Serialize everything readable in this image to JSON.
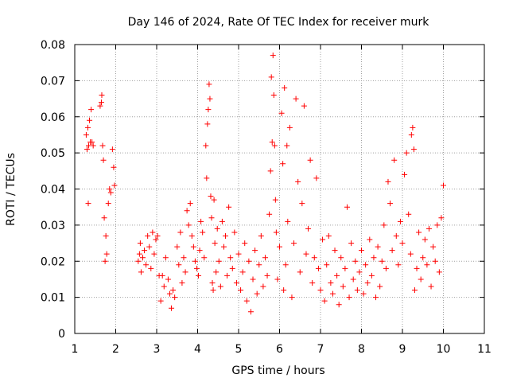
{
  "chart_data": {
    "type": "scatter",
    "title": "Day 146 of 2024, Rate Of TEC Index for receiver murk",
    "xlabel": "GPS time / hours",
    "ylabel": "ROTI / TECUs",
    "xlim": [
      1,
      11
    ],
    "ylim": [
      0,
      0.08
    ],
    "xticks": [
      "1",
      "2",
      "3",
      "4",
      "5",
      "6",
      "7",
      "8",
      "9",
      "10",
      "11"
    ],
    "yticks": [
      "0",
      "0.01",
      "0.02",
      "0.03",
      "0.04",
      "0.05",
      "0.06",
      "0.07",
      "0.08"
    ],
    "grid": true,
    "marker": "+",
    "series_color": "#ff0000",
    "series": [
      {
        "name": "ROTI",
        "points": [
          [
            1.28,
            0.055
          ],
          [
            1.3,
            0.051
          ],
          [
            1.32,
            0.057
          ],
          [
            1.33,
            0.036
          ],
          [
            1.34,
            0.052
          ],
          [
            1.36,
            0.059
          ],
          [
            1.38,
            0.053
          ],
          [
            1.4,
            0.062
          ],
          [
            1.42,
            0.053
          ],
          [
            1.45,
            0.052
          ],
          [
            1.62,
            0.063
          ],
          [
            1.65,
            0.064
          ],
          [
            1.66,
            0.066
          ],
          [
            1.68,
            0.052
          ],
          [
            1.7,
            0.048
          ],
          [
            1.72,
            0.032
          ],
          [
            1.74,
            0.02
          ],
          [
            1.76,
            0.027
          ],
          [
            1.78,
            0.022
          ],
          [
            1.82,
            0.036
          ],
          [
            1.85,
            0.04
          ],
          [
            1.88,
            0.039
          ],
          [
            1.92,
            0.051
          ],
          [
            1.95,
            0.046
          ],
          [
            1.97,
            0.041
          ],
          [
            2.55,
            0.02
          ],
          [
            2.58,
            0.022
          ],
          [
            2.6,
            0.025
          ],
          [
            2.62,
            0.017
          ],
          [
            2.66,
            0.021
          ],
          [
            2.7,
            0.023
          ],
          [
            2.74,
            0.019
          ],
          [
            2.78,
            0.027
          ],
          [
            2.82,
            0.024
          ],
          [
            2.86,
            0.018
          ],
          [
            2.9,
            0.028
          ],
          [
            2.94,
            0.022
          ],
          [
            2.98,
            0.026
          ],
          [
            3.02,
            0.027
          ],
          [
            3.06,
            0.016
          ],
          [
            3.1,
            0.009
          ],
          [
            3.14,
            0.016
          ],
          [
            3.18,
            0.013
          ],
          [
            3.22,
            0.021
          ],
          [
            3.28,
            0.015
          ],
          [
            3.32,
            0.011
          ],
          [
            3.36,
            0.007
          ],
          [
            3.4,
            0.012
          ],
          [
            3.44,
            0.01
          ],
          [
            3.5,
            0.024
          ],
          [
            3.54,
            0.019
          ],
          [
            3.58,
            0.028
          ],
          [
            3.62,
            0.014
          ],
          [
            3.66,
            0.021
          ],
          [
            3.7,
            0.017
          ],
          [
            3.74,
            0.034
          ],
          [
            3.78,
            0.03
          ],
          [
            3.82,
            0.036
          ],
          [
            3.86,
            0.027
          ],
          [
            3.9,
            0.024
          ],
          [
            3.94,
            0.02
          ],
          [
            3.98,
            0.018
          ],
          [
            4.02,
            0.016
          ],
          [
            4.05,
            0.023
          ],
          [
            4.08,
            0.031
          ],
          [
            4.12,
            0.028
          ],
          [
            4.16,
            0.021
          ],
          [
            4.2,
            0.052
          ],
          [
            4.22,
            0.043
          ],
          [
            4.24,
            0.058
          ],
          [
            4.26,
            0.062
          ],
          [
            4.28,
            0.069
          ],
          [
            4.3,
            0.065
          ],
          [
            4.32,
            0.038
          ],
          [
            4.34,
            0.032
          ],
          [
            4.36,
            0.014
          ],
          [
            4.38,
            0.012
          ],
          [
            4.4,
            0.037
          ],
          [
            4.42,
            0.025
          ],
          [
            4.45,
            0.017
          ],
          [
            4.48,
            0.029
          ],
          [
            4.52,
            0.02
          ],
          [
            4.56,
            0.013
          ],
          [
            4.6,
            0.031
          ],
          [
            4.64,
            0.024
          ],
          [
            4.68,
            0.027
          ],
          [
            4.72,
            0.016
          ],
          [
            4.76,
            0.035
          ],
          [
            4.8,
            0.021
          ],
          [
            4.85,
            0.018
          ],
          [
            4.9,
            0.028
          ],
          [
            4.95,
            0.014
          ],
          [
            5.0,
            0.022
          ],
          [
            5.05,
            0.012
          ],
          [
            5.1,
            0.017
          ],
          [
            5.15,
            0.025
          ],
          [
            5.2,
            0.009
          ],
          [
            5.25,
            0.02
          ],
          [
            5.3,
            0.006
          ],
          [
            5.35,
            0.015
          ],
          [
            5.4,
            0.023
          ],
          [
            5.45,
            0.011
          ],
          [
            5.5,
            0.019
          ],
          [
            5.55,
            0.027
          ],
          [
            5.6,
            0.013
          ],
          [
            5.65,
            0.021
          ],
          [
            5.7,
            0.016
          ],
          [
            5.75,
            0.033
          ],
          [
            5.78,
            0.045
          ],
          [
            5.8,
            0.071
          ],
          [
            5.82,
            0.053
          ],
          [
            5.84,
            0.077
          ],
          [
            5.86,
            0.066
          ],
          [
            5.88,
            0.052
          ],
          [
            5.9,
            0.037
          ],
          [
            5.92,
            0.028
          ],
          [
            5.95,
            0.015
          ],
          [
            6.0,
            0.024
          ],
          [
            6.05,
            0.061
          ],
          [
            6.08,
            0.047
          ],
          [
            6.1,
            0.012
          ],
          [
            6.12,
            0.068
          ],
          [
            6.15,
            0.019
          ],
          [
            6.18,
            0.052
          ],
          [
            6.2,
            0.031
          ],
          [
            6.25,
            0.057
          ],
          [
            6.3,
            0.01
          ],
          [
            6.35,
            0.025
          ],
          [
            6.4,
            0.065
          ],
          [
            6.45,
            0.042
          ],
          [
            6.5,
            0.017
          ],
          [
            6.55,
            0.036
          ],
          [
            6.6,
            0.063
          ],
          [
            6.65,
            0.022
          ],
          [
            6.7,
            0.029
          ],
          [
            6.75,
            0.048
          ],
          [
            6.8,
            0.014
          ],
          [
            6.85,
            0.021
          ],
          [
            6.9,
            0.043
          ],
          [
            6.95,
            0.018
          ],
          [
            7.0,
            0.012
          ],
          [
            7.05,
            0.026
          ],
          [
            7.1,
            0.009
          ],
          [
            7.15,
            0.019
          ],
          [
            7.2,
            0.027
          ],
          [
            7.25,
            0.014
          ],
          [
            7.3,
            0.011
          ],
          [
            7.35,
            0.023
          ],
          [
            7.4,
            0.016
          ],
          [
            7.45,
            0.008
          ],
          [
            7.5,
            0.021
          ],
          [
            7.55,
            0.013
          ],
          [
            7.6,
            0.018
          ],
          [
            7.65,
            0.035
          ],
          [
            7.7,
            0.01
          ],
          [
            7.75,
            0.025
          ],
          [
            7.8,
            0.015
          ],
          [
            7.85,
            0.02
          ],
          [
            7.9,
            0.012
          ],
          [
            7.95,
            0.017
          ],
          [
            8.0,
            0.023
          ],
          [
            8.05,
            0.011
          ],
          [
            8.1,
            0.019
          ],
          [
            8.15,
            0.014
          ],
          [
            8.2,
            0.026
          ],
          [
            8.25,
            0.016
          ],
          [
            8.3,
            0.021
          ],
          [
            8.35,
            0.01
          ],
          [
            8.4,
            0.024
          ],
          [
            8.45,
            0.013
          ],
          [
            8.5,
            0.02
          ],
          [
            8.55,
            0.03
          ],
          [
            8.6,
            0.018
          ],
          [
            8.65,
            0.042
          ],
          [
            8.7,
            0.036
          ],
          [
            8.75,
            0.023
          ],
          [
            8.8,
            0.048
          ],
          [
            8.85,
            0.027
          ],
          [
            8.9,
            0.019
          ],
          [
            8.95,
            0.031
          ],
          [
            9.0,
            0.025
          ],
          [
            9.05,
            0.044
          ],
          [
            9.1,
            0.05
          ],
          [
            9.15,
            0.033
          ],
          [
            9.2,
            0.022
          ],
          [
            9.22,
            0.055
          ],
          [
            9.25,
            0.057
          ],
          [
            9.28,
            0.051
          ],
          [
            9.3,
            0.012
          ],
          [
            9.35,
            0.018
          ],
          [
            9.4,
            0.028
          ],
          [
            9.45,
            0.015
          ],
          [
            9.5,
            0.021
          ],
          [
            9.55,
            0.026
          ],
          [
            9.6,
            0.019
          ],
          [
            9.65,
            0.029
          ],
          [
            9.7,
            0.013
          ],
          [
            9.75,
            0.024
          ],
          [
            9.8,
            0.02
          ],
          [
            9.85,
            0.03
          ],
          [
            9.9,
            0.017
          ],
          [
            9.95,
            0.032
          ],
          [
            10.0,
            0.041
          ]
        ]
      }
    ]
  }
}
